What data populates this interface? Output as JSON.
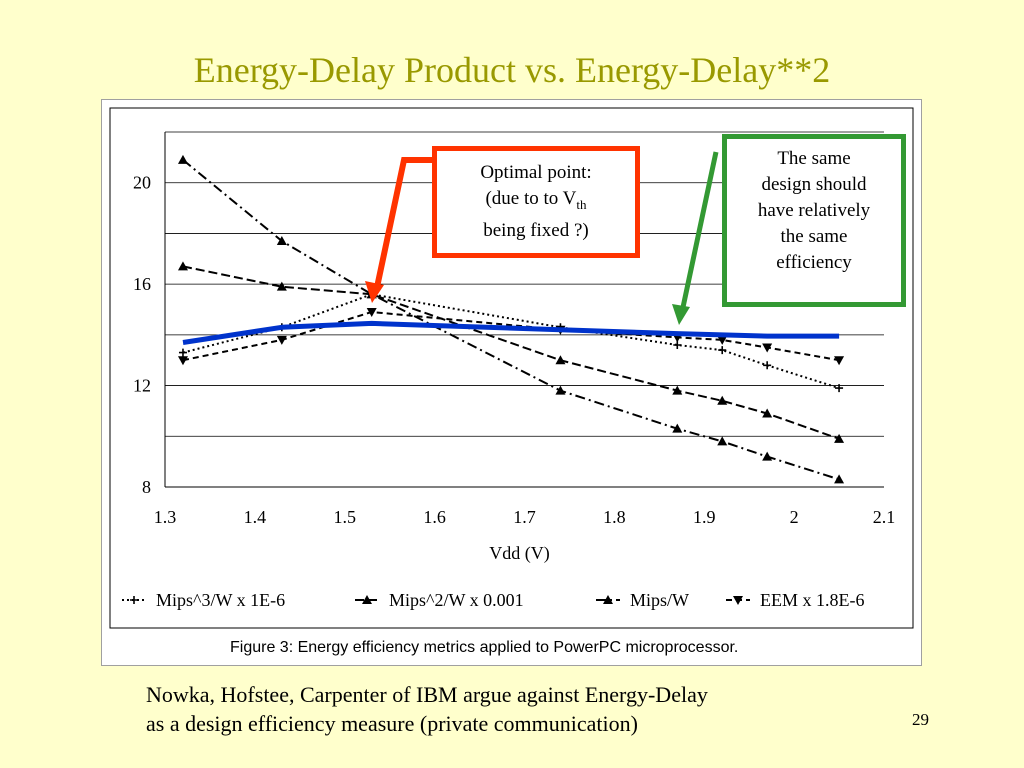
{
  "slide": {
    "title": "Energy-Delay Product vs. Energy-Delay**2",
    "citation_line1": "Nowka, Hofstee, Carpenter of IBM argue against Energy-Delay",
    "citation_line2": "as a design efficiency measure (private communication)",
    "page_number": "29"
  },
  "annotations": {
    "optimal_line1": "Optimal point:",
    "optimal_line2_prefix": "(due to to V",
    "optimal_line2_sub": "th",
    "optimal_line3": "being fixed ?)",
    "same_lines": [
      "The same",
      "design should",
      "have relatively",
      "the same",
      "efficiency"
    ],
    "optimal_color": "#FF3300",
    "same_color": "#339933"
  },
  "chart_data": {
    "type": "line",
    "caption": "Figure 3: Energy efficiency metrics applied to PowerPC microprocessor.",
    "xlabel": "Vdd (V)",
    "ylabel": "",
    "xlim": [
      1.3,
      2.1
    ],
    "ylim": [
      8,
      22
    ],
    "x_ticks": [
      "1.3",
      "1.4",
      "1.5",
      "1.6",
      "1.7",
      "1.8",
      "1.9",
      "2",
      "2.1"
    ],
    "y_ticks": [
      "8",
      "12",
      "16",
      "20"
    ],
    "grid": "horizontal",
    "legend_position": "bottom",
    "series": [
      {
        "name": "Mips^3/W x 1E-6",
        "style": "dotted",
        "marker": "plus",
        "x": [
          1.32,
          1.43,
          1.53,
          1.74,
          1.87,
          1.92,
          1.97,
          2.05
        ],
        "y": [
          13.3,
          14.3,
          15.6,
          14.3,
          13.6,
          13.4,
          12.8,
          11.9
        ]
      },
      {
        "name": "Mips^2/W x 0.001",
        "style": "longdash",
        "marker": "triangle",
        "x": [
          1.32,
          1.43,
          1.53,
          1.74,
          1.87,
          1.92,
          1.97,
          2.05
        ],
        "y": [
          16.7,
          15.9,
          15.6,
          13.0,
          11.8,
          11.4,
          10.9,
          9.9
        ]
      },
      {
        "name": "Mips/W",
        "style": "dashdot",
        "marker": "triangle",
        "x": [
          1.32,
          1.43,
          1.53,
          1.74,
          1.87,
          1.92,
          1.97,
          2.05
        ],
        "y": [
          20.9,
          17.7,
          15.6,
          11.8,
          10.3,
          9.8,
          9.2,
          8.3
        ]
      },
      {
        "name": "EEM x 1.8E-6",
        "style": "dash",
        "marker": "triangle-down",
        "x": [
          1.32,
          1.43,
          1.53,
          1.74,
          1.87,
          1.92,
          1.97,
          2.05
        ],
        "y": [
          13.0,
          13.8,
          14.9,
          14.2,
          13.9,
          13.8,
          13.5,
          13.0
        ]
      }
    ],
    "overlay": {
      "color": "#0033CC",
      "x": [
        1.32,
        1.43,
        1.53,
        1.74,
        1.87,
        1.92,
        1.97,
        2.05
      ],
      "y": [
        13.7,
        14.3,
        14.45,
        14.2,
        14.05,
        14.0,
        13.95,
        13.95
      ]
    }
  }
}
